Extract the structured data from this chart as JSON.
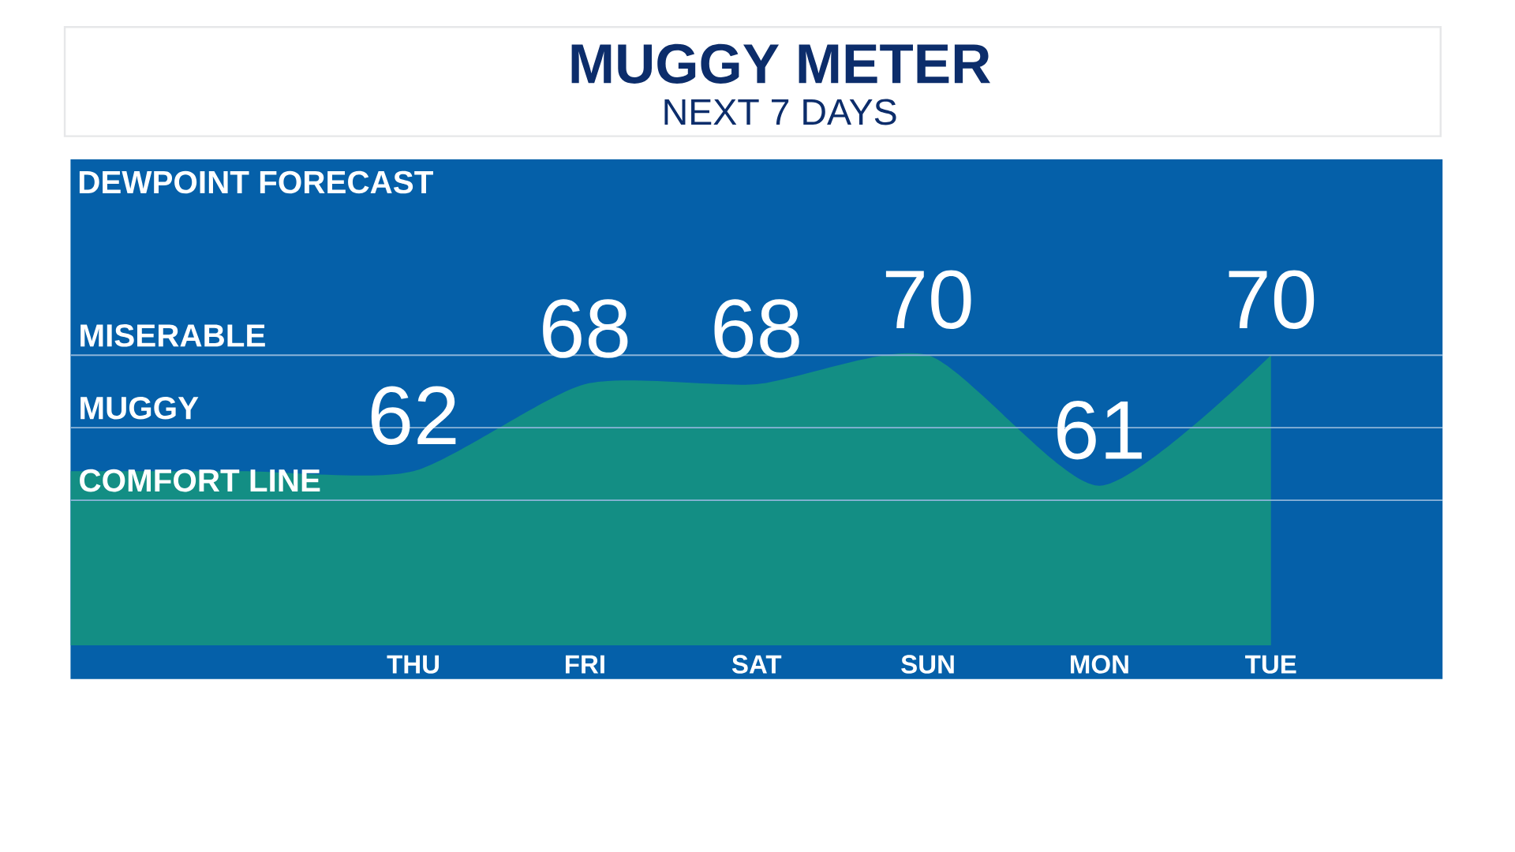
{
  "chart_data": {
    "type": "area",
    "title": "MUGGY METER",
    "subtitle": "NEXT 7 DAYS",
    "annotations": [
      "DEWPOINT FORECAST"
    ],
    "categories": [
      null,
      null,
      "THU",
      "FRI",
      "SAT",
      "SUN",
      "MON",
      "TUE",
      null
    ],
    "values": [
      62,
      62,
      62,
      68,
      68,
      70,
      61,
      70,
      null
    ],
    "value_labels": [
      null,
      null,
      "62",
      "68",
      "68",
      "70",
      "61",
      "70",
      null
    ],
    "color": "#138e84",
    "tick_labels": "x",
    "ref_lines": [
      {
        "axis": "y",
        "value": 70,
        "label": "MISERABLE",
        "color": "#8db4d9"
      },
      {
        "axis": "y",
        "value": 65,
        "label": "MUGGY",
        "color": "#8db4d9"
      },
      {
        "axis": "y",
        "value": 60,
        "label": "COMFORT LINE",
        "color": "#8db4d9"
      }
    ]
  }
}
